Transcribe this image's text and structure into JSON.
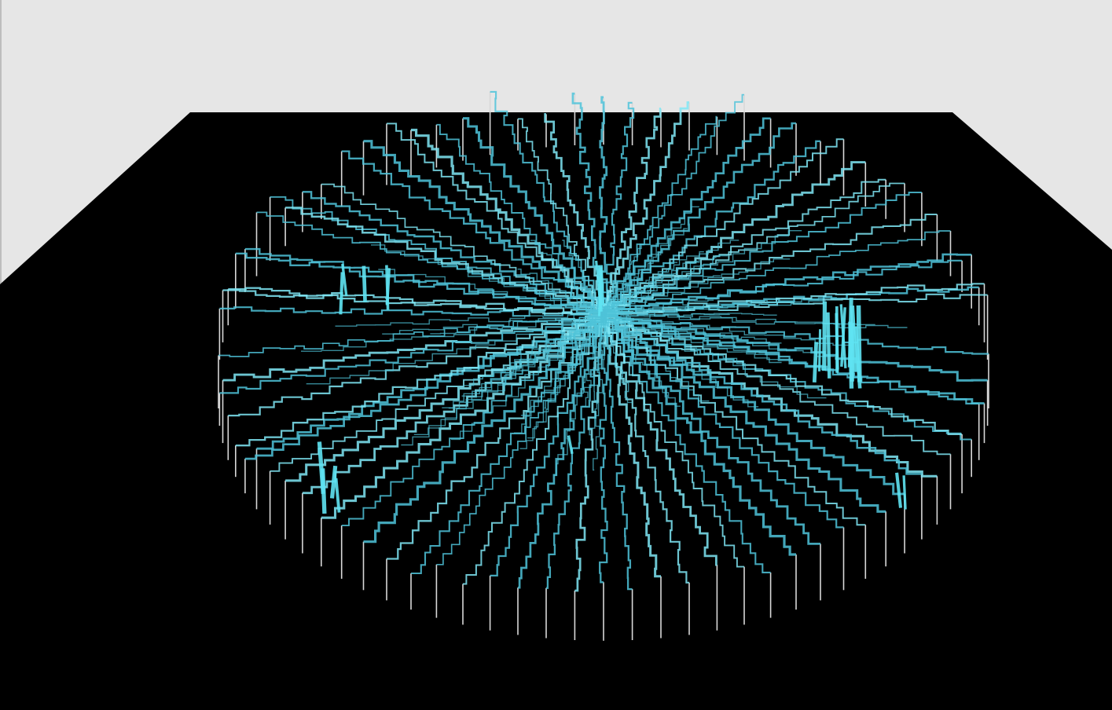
{
  "scene": {
    "background_color": "#e6e6e6",
    "floor_color": "#000000",
    "trace_color": "#4fc3d9",
    "trace_highlight_color": "#7fe6f5",
    "post_color": "#d8d8d8",
    "bar_color": "#5fe3f2"
  }
}
